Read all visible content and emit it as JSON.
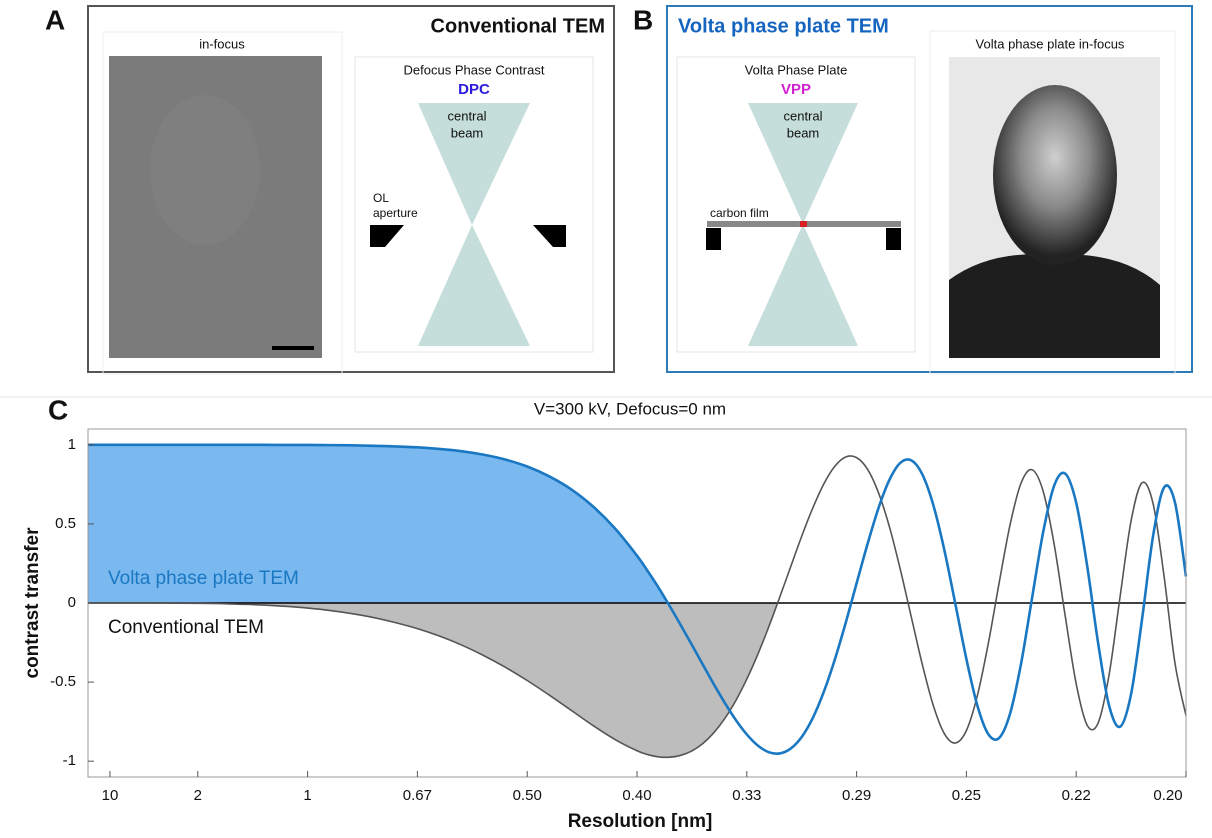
{
  "panels": {
    "A": {
      "label": "A",
      "title": "Conventional TEM",
      "image_caption": "in-focus",
      "diagram_title": "Defocus Phase Contrast",
      "diagram_abbrev": "DPC",
      "beam_label": [
        "central",
        "beam"
      ],
      "aperture_label": [
        "OL",
        "aperture"
      ]
    },
    "B": {
      "label": "B",
      "title": "Volta phase plate TEM",
      "diagram_title": "Volta Phase Plate",
      "diagram_abbrev": "VPP",
      "beam_label": [
        "central",
        "beam"
      ],
      "film_label": "carbon film",
      "image_caption": "Volta phase plate in-focus"
    },
    "C": {
      "label": "C"
    }
  },
  "chart_data": {
    "type": "line",
    "title": "V=300 kV, Defocus=0 nm",
    "x_label": "Resolution [nm]",
    "y_label": "contrast transfer",
    "x": [
      0,
      0.1,
      0.2,
      0.3,
      0.4,
      0.5,
      0.6,
      0.7,
      0.8,
      0.9,
      1,
      1.1,
      1.2,
      1.3,
      1.4,
      1.5,
      1.6,
      1.7,
      1.8,
      1.9,
      2,
      2.1,
      2.2,
      2.3,
      2.4,
      2.5,
      2.55,
      2.6,
      2.65,
      2.7,
      2.75,
      2.8,
      2.85,
      2.9,
      2.95,
      3,
      3.05,
      3.1,
      3.15,
      3.2,
      3.25,
      3.3,
      3.35,
      3.4,
      3.45,
      3.5,
      3.55,
      3.6,
      3.65,
      3.7,
      3.75,
      3.8,
      3.85,
      3.9,
      3.95,
      4,
      4.05,
      4.1,
      4.15,
      4.2,
      4.25,
      4.3,
      4.35,
      4.4,
      4.45,
      4.5,
      4.55,
      4.6,
      4.65,
      4.7,
      4.75,
      4.8,
      4.85,
      4.9,
      4.95,
      5
    ],
    "series": [
      {
        "name": "Conventional TEM",
        "color": "#555555",
        "fill": "#bdbdbd",
        "label_color": "#111111",
        "values": [
          0,
          0,
          0,
          0,
          -0.001,
          -0.002,
          -0.004,
          -0.008,
          -0.013,
          -0.021,
          -0.032,
          -0.047,
          -0.067,
          -0.092,
          -0.124,
          -0.162,
          -0.209,
          -0.265,
          -0.331,
          -0.406,
          -0.49,
          -0.582,
          -0.678,
          -0.775,
          -0.863,
          -0.934,
          -0.959,
          -0.973,
          -0.975,
          -0.963,
          -0.935,
          -0.888,
          -0.82,
          -0.73,
          -0.617,
          -0.481,
          -0.325,
          -0.151,
          0.037,
          0.23,
          0.422,
          0.599,
          0.751,
          0.863,
          0.923,
          0.919,
          0.845,
          0.696,
          0.479,
          0.207,
          -0.094,
          -0.393,
          -0.651,
          -0.827,
          -0.885,
          -0.806,
          -0.585,
          -0.254,
          0.134,
          0.502,
          0.762,
          0.842,
          0.704,
          0.368,
          -0.082,
          -0.511,
          -0.773,
          -0.758,
          -0.452,
          0.042,
          0.52,
          0.76,
          0.629,
          0.17,
          -0.382,
          -0.712
        ]
      },
      {
        "name": "Volta phase plate TEM",
        "color": "#1a78c2",
        "fill": "#7ab8f0",
        "label_color": "#1a78c2",
        "values": [
          1,
          1,
          1,
          1,
          1,
          1,
          1,
          1,
          1,
          0.999,
          0.999,
          0.998,
          0.997,
          0.994,
          0.99,
          0.984,
          0.974,
          0.96,
          0.938,
          0.907,
          0.863,
          0.801,
          0.719,
          0.61,
          0.471,
          0.299,
          0.199,
          0.093,
          -0.022,
          -0.142,
          -0.265,
          -0.39,
          -0.514,
          -0.632,
          -0.74,
          -0.831,
          -0.901,
          -0.943,
          -0.951,
          -0.92,
          -0.847,
          -0.728,
          -0.564,
          -0.361,
          -0.127,
          0.125,
          0.374,
          0.601,
          0.78,
          0.887,
          0.901,
          0.811,
          0.616,
          0.332,
          -0.008,
          -0.354,
          -0.649,
          -0.83,
          -0.852,
          -0.694,
          -0.375,
          0.04,
          0.451,
          0.743,
          0.818,
          0.634,
          0.234,
          -0.255,
          -0.65,
          -0.782,
          -0.575,
          -0.101,
          0.423,
          0.73,
          0.634,
          0.168
        ]
      }
    ],
    "xlim": [
      0,
      5
    ],
    "ylim": [
      -1.1,
      1.1
    ],
    "xticks": [
      {
        "value": 0.1,
        "label": "10"
      },
      {
        "value": 0.5,
        "label": "2"
      },
      1,
      {
        "value": 1.5,
        "label": "0.67"
      },
      {
        "value": 2,
        "label": "0.50"
      },
      {
        "value": 2.5,
        "label": "0.40"
      },
      {
        "value": 3,
        "label": "0.33"
      },
      {
        "value": 3.5,
        "label": "0.29"
      },
      {
        "value": 4,
        "label": "0.25"
      },
      {
        "value": 4.5,
        "label": "0.22"
      },
      {
        "value": 5,
        "label": "0.20"
      }
    ],
    "yticks": [
      -1,
      -0.5,
      0,
      0.5,
      1
    ]
  }
}
